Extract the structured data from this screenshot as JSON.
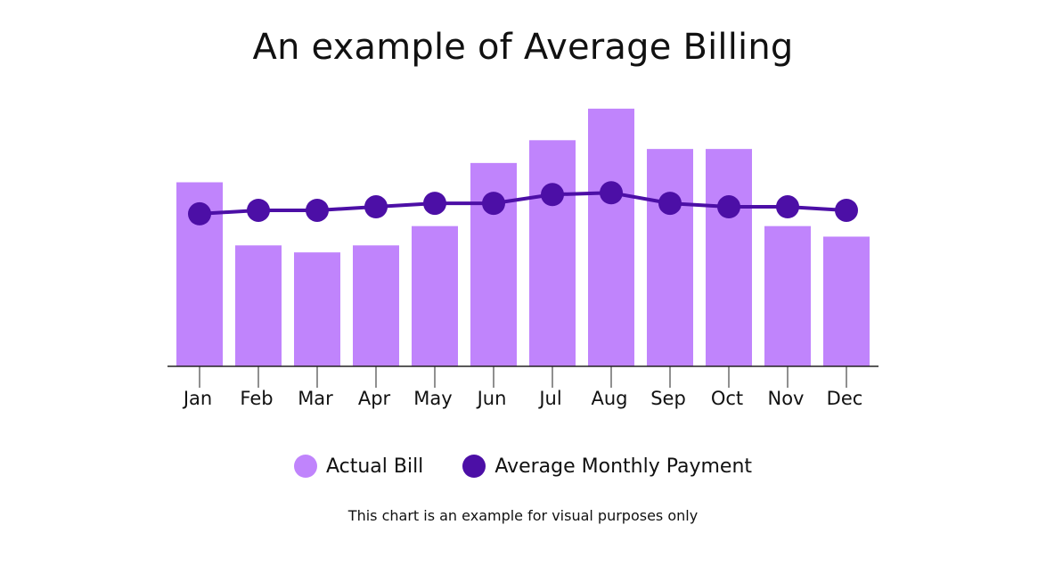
{
  "chart_data": {
    "type": "bar",
    "title": "An example of Average Billing",
    "categories": [
      "Jan",
      "Feb",
      "Mar",
      "Apr",
      "May",
      "Jun",
      "Jul",
      "Aug",
      "Sep",
      "Oct",
      "Nov",
      "Dec"
    ],
    "series": [
      {
        "name": "Actual Bill",
        "type": "bar",
        "color": "#c084fc",
        "values": [
          105,
          69,
          65,
          69,
          80,
          116,
          129,
          147,
          124,
          124,
          80,
          74
        ]
      },
      {
        "name": "Average Monthly Payment",
        "type": "line",
        "color": "#4c0fa6",
        "values": [
          87,
          89,
          89,
          91,
          93,
          93,
          98,
          99,
          93,
          91,
          91,
          89
        ]
      }
    ],
    "ylim": [
      0,
      150
    ],
    "y_axis_shown": false,
    "grid": false,
    "legend": "bottom-center",
    "note": "This chart is an example for visual purposes only"
  }
}
